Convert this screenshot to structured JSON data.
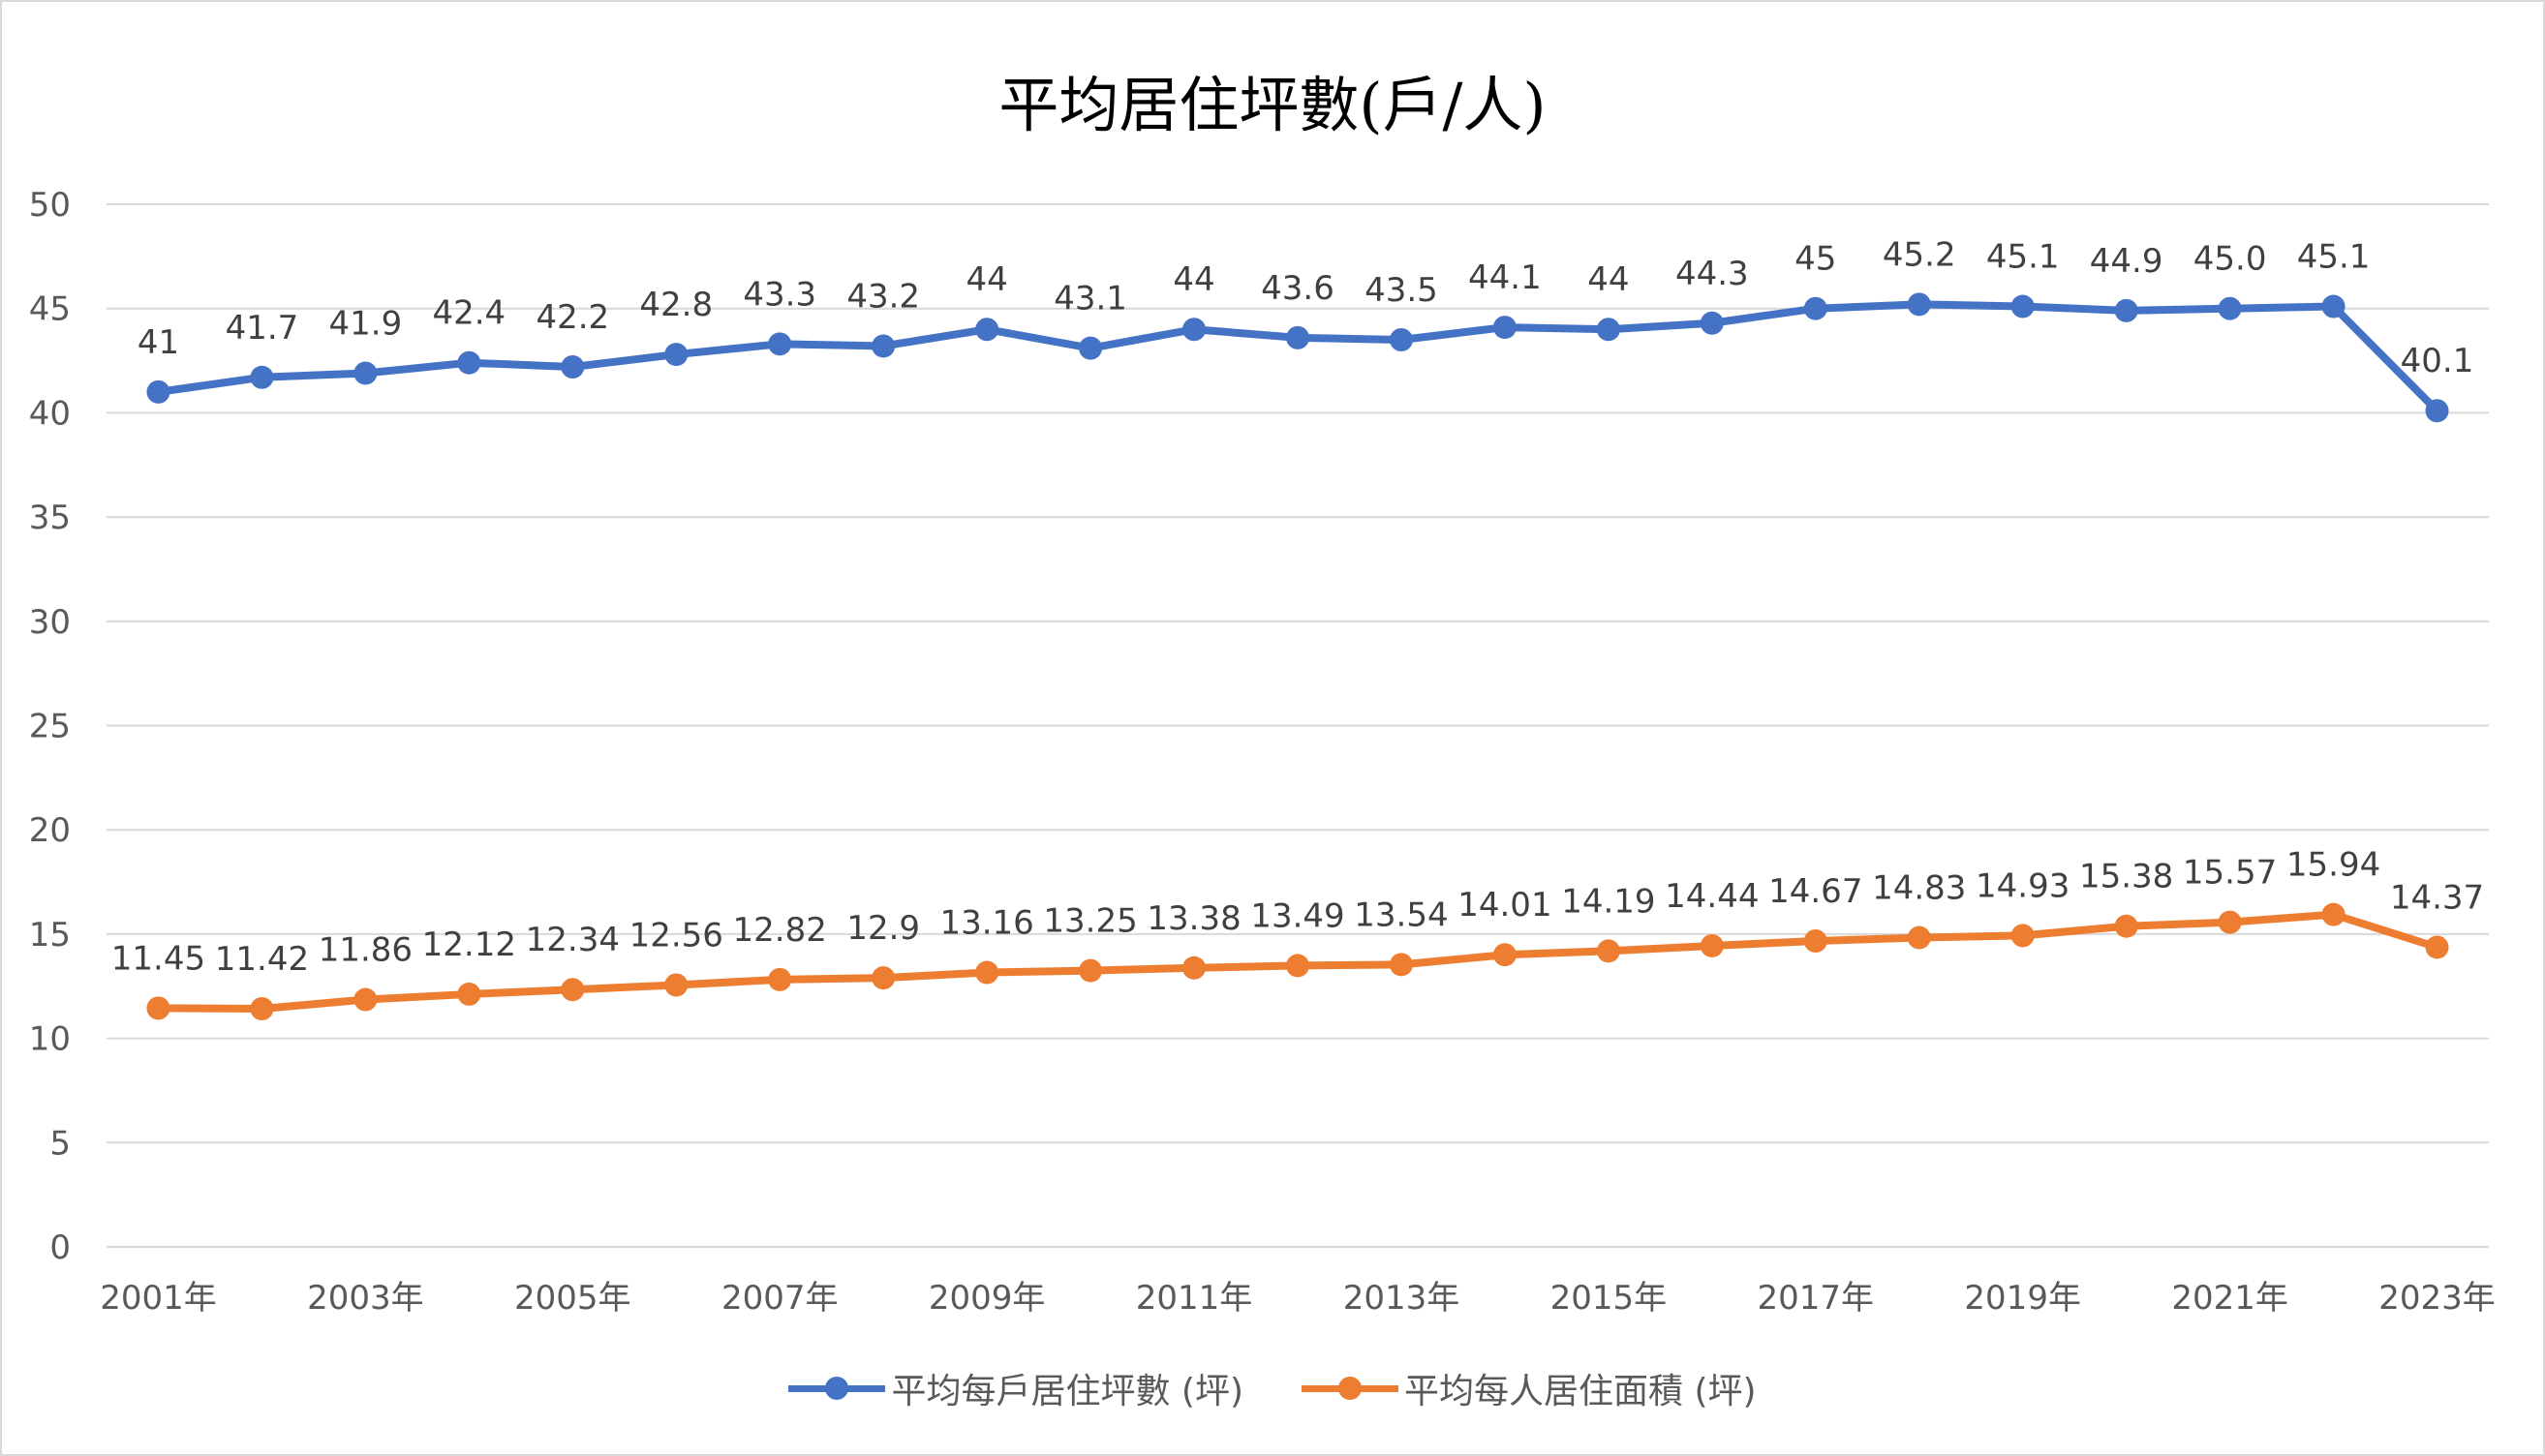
{
  "title": "平均居住坪數(戶/人)",
  "chart_data": {
    "type": "line",
    "title": "平均居住坪數(戶/人)",
    "xlabel": "",
    "ylabel": "",
    "ylim": [
      0,
      50
    ],
    "yticks": [
      "0",
      "5",
      "10",
      "15",
      "20",
      "25",
      "30",
      "35",
      "40",
      "45",
      "50"
    ],
    "categories": [
      "2001年",
      "2002年",
      "2003年",
      "2004年",
      "2005年",
      "2006年",
      "2007年",
      "2008年",
      "2009年",
      "2010年",
      "2011年",
      "2012年",
      "2013年",
      "2014年",
      "2015年",
      "2016年",
      "2017年",
      "2018年",
      "2019年",
      "2020年",
      "2021年",
      "2022年",
      "2023年"
    ],
    "visible_category_labels": [
      "2001年",
      "2003年",
      "2005年",
      "2007年",
      "2009年",
      "2011年",
      "2013年",
      "2015年",
      "2017年",
      "2019年",
      "2021年",
      "2023年"
    ],
    "grid": true,
    "legend_position": "bottom",
    "series": [
      {
        "name": "平均每戶居住坪數 (坪)",
        "color": "#4472c4",
        "values": [
          41,
          41.7,
          41.9,
          42.4,
          42.2,
          42.8,
          43.3,
          43.2,
          44,
          43.1,
          44,
          43.6,
          43.5,
          44.1,
          44,
          44.3,
          45,
          45.2,
          45.1,
          44.9,
          45.0,
          45.1,
          40.1
        ],
        "labels": [
          "41",
          "41.7",
          "41.9",
          "42.4",
          "42.2",
          "42.8",
          "43.3",
          "43.2",
          "44",
          "43.1",
          "44",
          "43.6",
          "43.5",
          "44.1",
          "44",
          "44.3",
          "45",
          "45.2",
          "45.1",
          "44.9",
          "45.0",
          "45.1",
          "40.1"
        ]
      },
      {
        "name": "平均每人居住面積 (坪)",
        "color": "#ed7d31",
        "values": [
          11.45,
          11.42,
          11.86,
          12.12,
          12.34,
          12.56,
          12.82,
          12.9,
          13.16,
          13.25,
          13.38,
          13.49,
          13.54,
          14.01,
          14.19,
          14.44,
          14.67,
          14.83,
          14.93,
          15.38,
          15.57,
          15.94,
          14.37
        ],
        "labels": [
          "11.45",
          "11.42",
          "11.86",
          "12.12",
          "12.34",
          "12.56",
          "12.82",
          "12.9",
          "13.16",
          "13.25",
          "13.38",
          "13.49",
          "13.54",
          "14.01",
          "14.19",
          "14.44",
          "14.67",
          "14.83",
          "14.93",
          "15.38",
          "15.57",
          "15.94",
          "14.37"
        ]
      }
    ]
  },
  "legend": {
    "items": [
      "平均每戶居住坪數 (坪)",
      "平均每人居住面積 (坪)"
    ],
    "colors": [
      "#4472c4",
      "#ed7d31"
    ]
  }
}
